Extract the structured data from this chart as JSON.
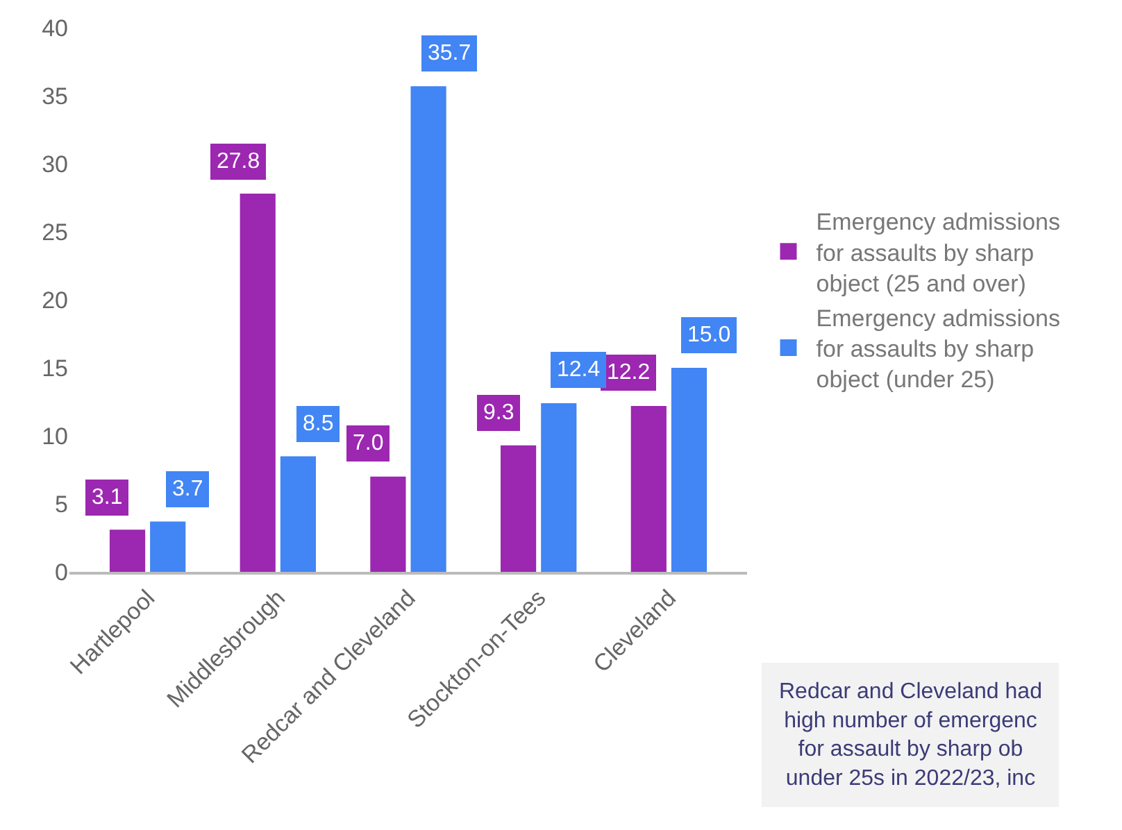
{
  "chart_data": {
    "type": "bar",
    "categories": [
      "Hartlepool",
      "Middlesbrough",
      "Redcar and Cleveland",
      "Stockton-on-Tees",
      "Cleveland"
    ],
    "series": [
      {
        "name": "Emergency admissions for assaults by sharp object (25 and over)",
        "color": "#9c27b0",
        "values": [
          3.1,
          27.8,
          7.0,
          9.3,
          12.2
        ],
        "value_labels": [
          "3.1",
          "27.8",
          "7.0",
          "9.3",
          "12.2"
        ]
      },
      {
        "name": "Emergency admissions for assaults by sharp object (under 25)",
        "color": "#4285f4",
        "values": [
          3.7,
          8.5,
          35.7,
          12.4,
          15.0
        ],
        "value_labels": [
          "3.7",
          "8.5",
          "35.7",
          "12.4",
          "15.0"
        ]
      }
    ],
    "ylim": [
      0,
      40
    ],
    "yticks": [
      0,
      5,
      10,
      15,
      20,
      25,
      30,
      35,
      40
    ],
    "grid": false,
    "legend": "right",
    "annotations": [
      "Redcar and Cleveland had\nhigh number of emergenc\nfor assault by sharp ob\nunder 25s in 2022/23, inc"
    ]
  }
}
